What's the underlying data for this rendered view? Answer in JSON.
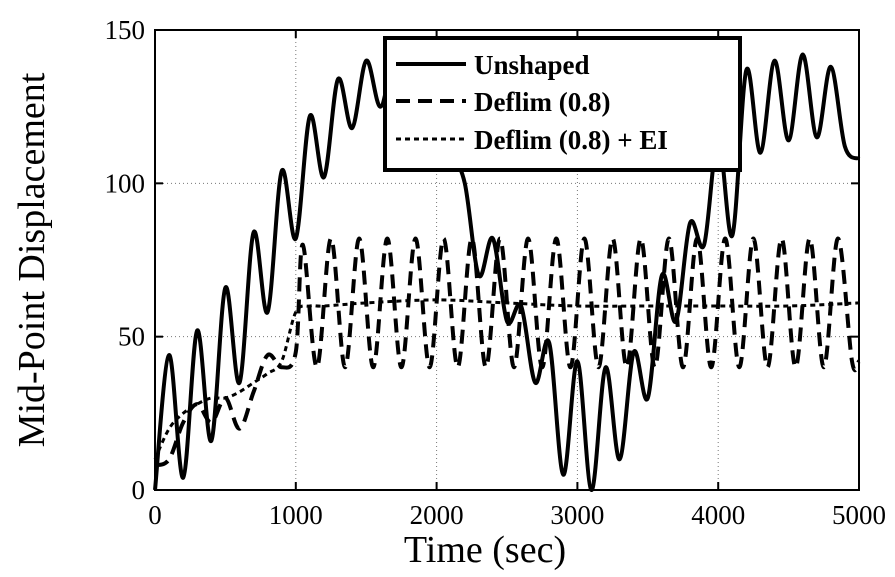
{
  "chart_data": {
    "type": "line",
    "xlabel": "Time (sec)",
    "ylabel": "Mid-Point Displacement",
    "xlim": [
      0,
      5000
    ],
    "ylim": [
      0,
      150
    ],
    "xticks": [
      0,
      1000,
      2000,
      3000,
      4000,
      5000
    ],
    "yticks": [
      0,
      50,
      100,
      150
    ],
    "grid": true,
    "legend_position": "top-right",
    "series": [
      {
        "name": "Unshaped",
        "style": "solid",
        "x": [
          0,
          100,
          200,
          300,
          400,
          500,
          600,
          700,
          800,
          900,
          1000,
          1100,
          1200,
          1300,
          1400,
          1500,
          1600,
          1700,
          1800,
          1900,
          2000,
          2100,
          2200,
          2300,
          2400,
          2500,
          2600,
          2700,
          2800,
          2900,
          3000,
          3100,
          3200,
          3300,
          3400,
          3500,
          3600,
          3700,
          3800,
          3900,
          4000,
          4100,
          4200,
          4300,
          4400,
          4500,
          4600,
          4700,
          4800,
          4900,
          5000
        ],
        "y": [
          0,
          44,
          4,
          52,
          16,
          66,
          35,
          84,
          58,
          104,
          82,
          122,
          102,
          134,
          118,
          140,
          125,
          140,
          128,
          126,
          118,
          110,
          100,
          70,
          82,
          55,
          60,
          35,
          48,
          5,
          42,
          0,
          40,
          10,
          45,
          30,
          70,
          55,
          87,
          80,
          115,
          83,
          137,
          110,
          140,
          114,
          142,
          115,
          138,
          112,
          108
        ]
      },
      {
        "name": "Deflim (0.8)",
        "style": "dashed",
        "x": [
          0,
          100,
          200,
          300,
          400,
          500,
          600,
          700,
          800,
          900,
          1000,
          1050,
          1150,
          1250,
          1350,
          1450,
          1550,
          1650,
          1750,
          1850,
          1950,
          2050,
          2150,
          2250,
          2350,
          2450,
          2550,
          2650,
          2750,
          2850,
          2950,
          3050,
          3150,
          3250,
          3350,
          3450,
          3550,
          3650,
          3750,
          3850,
          3950,
          4050,
          4150,
          4250,
          4350,
          4450,
          4550,
          4650,
          4750,
          4850,
          4950,
          5000
        ],
        "y": [
          8,
          10,
          22,
          28,
          22,
          30,
          20,
          32,
          44,
          40,
          45,
          80,
          40,
          82,
          40,
          82,
          40,
          82,
          40,
          82,
          40,
          82,
          40,
          82,
          40,
          82,
          40,
          82,
          40,
          82,
          40,
          82,
          40,
          82,
          40,
          82,
          40,
          82,
          40,
          82,
          40,
          82,
          40,
          82,
          40,
          82,
          40,
          82,
          40,
          82,
          42,
          42
        ]
      },
      {
        "name": "Deflim (0.8) + EI",
        "style": "dotted",
        "x": [
          0,
          100,
          200,
          300,
          400,
          500,
          600,
          700,
          800,
          900,
          1000,
          1100,
          1200,
          1500,
          2000,
          2500,
          3000,
          3500,
          4000,
          4500,
          5000
        ],
        "y": [
          10,
          20,
          25,
          28,
          30,
          30,
          32,
          35,
          38,
          42,
          58,
          60,
          60,
          61,
          62,
          61,
          60,
          60,
          60,
          60,
          61
        ]
      }
    ]
  }
}
